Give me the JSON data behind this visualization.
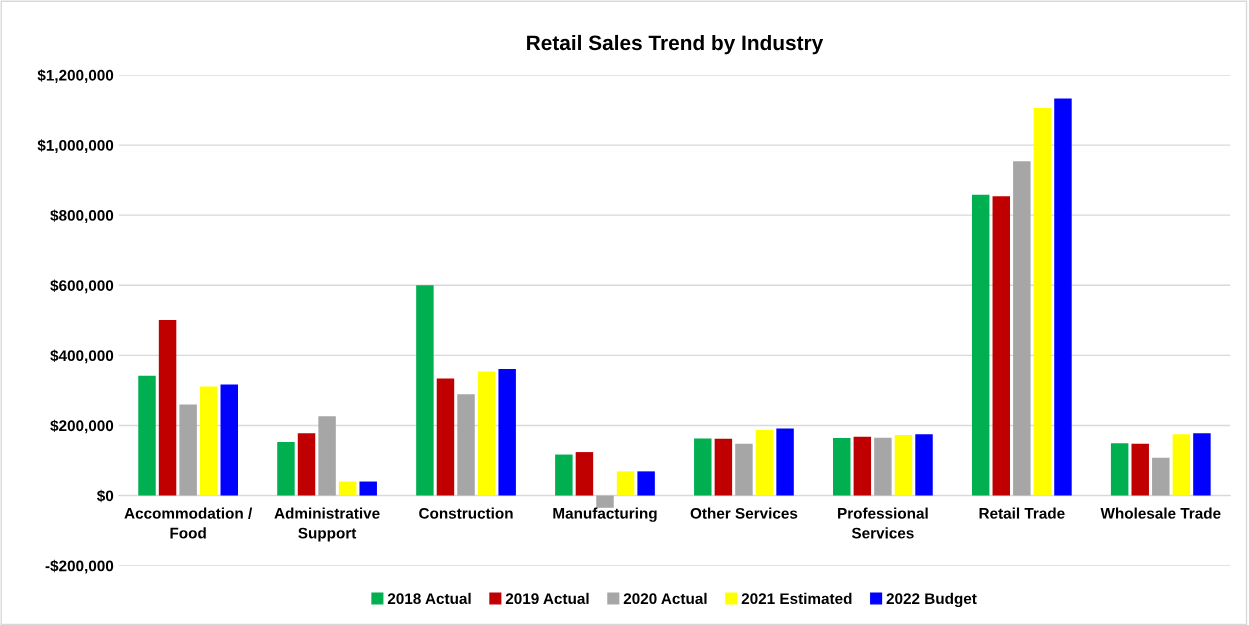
{
  "chart_data": {
    "type": "bar",
    "title": "Retail Sales Trend by Industry",
    "categories": [
      "Accommodation /\nFood",
      "Administrative\nSupport",
      "Construction",
      "Manufacturing",
      "Other Services",
      "Professional\nServices",
      "Retail Trade",
      "Wholesale Trade"
    ],
    "series": [
      {
        "name": "2018 Actual",
        "color": "#00b050",
        "values": [
          342000,
          153000,
          600000,
          117000,
          163000,
          164000,
          858000,
          149000
        ]
      },
      {
        "name": "2019 Actual",
        "color": "#c00000",
        "values": [
          501000,
          178000,
          334000,
          124000,
          162000,
          168000,
          854000,
          148000
        ]
      },
      {
        "name": "2020 Actual",
        "color": "#a6a6a6",
        "values": [
          260000,
          226000,
          289000,
          -35000,
          148000,
          165000,
          954000,
          108000
        ]
      },
      {
        "name": "2021 Estimated",
        "color": "#ffff00",
        "values": [
          311000,
          40000,
          354000,
          69000,
          187000,
          173000,
          1106000,
          175000
        ]
      },
      {
        "name": "2022 Budget",
        "color": "#0000ff",
        "values": [
          317000,
          40000,
          361000,
          69000,
          191000,
          175000,
          1133000,
          178000
        ]
      }
    ],
    "ylim": [
      -200000,
      1200000
    ],
    "yticks": [
      {
        "value": -200000,
        "label": "-$200,000"
      },
      {
        "value": 0,
        "label": "$0"
      },
      {
        "value": 200000,
        "label": "$200,000"
      },
      {
        "value": 400000,
        "label": "$400,000"
      },
      {
        "value": 600000,
        "label": "$600,000"
      },
      {
        "value": 800000,
        "label": "$800,000"
      },
      {
        "value": 1000000,
        "label": "$1,000,000"
      },
      {
        "value": 1200000,
        "label": "$1,200,000"
      }
    ],
    "grid": "y",
    "legend": "bottom"
  }
}
